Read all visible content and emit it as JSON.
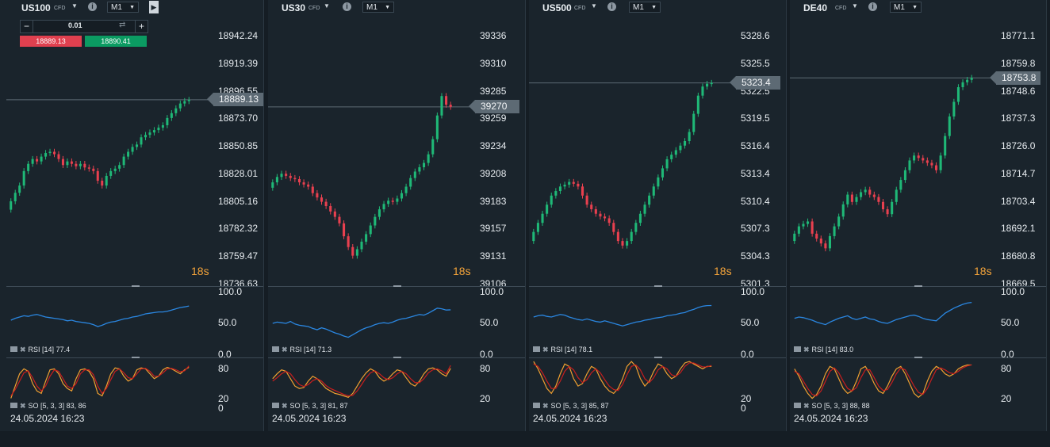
{
  "colors": {
    "up": "#1fb877",
    "down": "#e8404f",
    "rsi": "#2a86e0",
    "so_k": "#f0a030",
    "so_d": "#c81e1e",
    "price_line": "#5d6a74",
    "countdown": "#f3a33a"
  },
  "first_panel_controls": {
    "lot_value": "0.01",
    "minus": "−",
    "plus": "+",
    "swap_icon": "swap-icon",
    "sell_price": "18889.13",
    "buy_price": "18890.41",
    "play_icon": "play-icon"
  },
  "panels": [
    {
      "symbol": "US100",
      "cfd": "CFD",
      "timeframe": "M1",
      "price_ticks": [
        "18942.24",
        "18919.39",
        "18896.55",
        "18873.70",
        "18850.85",
        "18828.01",
        "18805.16",
        "18782.32",
        "18759.47",
        "18736.63"
      ],
      "price_min": 18736.63,
      "price_max": 18942.24,
      "current_price": "18889.13",
      "current_value": 18889.13,
      "countdown": "18s",
      "rsi_ticks": [
        "100.0",
        "50.0",
        "0.0"
      ],
      "rsi_label": "RSI [14] 77.4",
      "so_ticks": [
        "80",
        "20",
        "0"
      ],
      "so_label": "SO [5, 3, 3] 83, 86",
      "date": "24.05.2024 16:23"
    },
    {
      "symbol": "US30",
      "cfd": "CFD",
      "timeframe": "M1",
      "price_ticks": [
        "39336",
        "39310",
        "39285",
        "39259",
        "39234",
        "39208",
        "39183",
        "39157",
        "39131",
        "39106"
      ],
      "price_min": 39106,
      "price_max": 39336,
      "current_price": "39270",
      "current_value": 39270,
      "countdown": "18s",
      "rsi_ticks": [
        "100.0",
        "50.0",
        "0.0"
      ],
      "rsi_label": "RSI [14] 71.3",
      "so_ticks": [
        "80",
        "20"
      ],
      "so_label": "SO [5, 3, 3] 81, 87",
      "date": "24.05.2024 16:23"
    },
    {
      "symbol": "US500",
      "cfd": "CFD",
      "timeframe": "M1",
      "price_ticks": [
        "5328.6",
        "5325.5",
        "5322.5",
        "5319.5",
        "5316.4",
        "5313.4",
        "5310.4",
        "5307.3",
        "5304.3",
        "5301.3"
      ],
      "price_min": 5301.3,
      "price_max": 5328.6,
      "current_price": "5323.4",
      "current_value": 5323.4,
      "countdown": "18s",
      "rsi_ticks": [
        "100.0",
        "50.0",
        "0.0"
      ],
      "rsi_label": "RSI [14] 78.1",
      "so_ticks": [
        "20",
        "0"
      ],
      "so_label": "SO [5, 3, 3] 85, 87",
      "date": "24.05.2024 16:23"
    },
    {
      "symbol": "DE40",
      "cfd": "CFD",
      "timeframe": "M1",
      "price_ticks": [
        "18771.1",
        "18759.8",
        "18748.6",
        "18737.3",
        "18726.0",
        "18714.7",
        "18703.4",
        "18692.1",
        "18680.8",
        "18669.5"
      ],
      "price_min": 18669.5,
      "price_max": 18771.1,
      "current_price": "18753.8",
      "current_value": 18753.8,
      "countdown": "18s",
      "rsi_ticks": [
        "100.0",
        "50.0",
        "0.0"
      ],
      "rsi_label": "RSI [14] 83.0",
      "so_ticks": [
        "80",
        "20"
      ],
      "so_label": "SO [5, 3, 3] 88, 88",
      "date": "24.05.2024 16:23"
    }
  ],
  "chart_data": [
    {
      "type": "candlestick",
      "title": "US100",
      "close": [
        18805,
        18812,
        18818,
        18830,
        18836,
        18840,
        18838,
        18842,
        18845,
        18846,
        18844,
        18840,
        18835,
        18838,
        18836,
        18834,
        18836,
        18833,
        18832,
        18830,
        18822,
        18818,
        18826,
        18830,
        18832,
        18835,
        18842,
        18846,
        18850,
        18852,
        18858,
        18860,
        18862,
        18864,
        18866,
        18868,
        18874,
        18878,
        18882,
        18886,
        18888,
        18889
      ],
      "rsi": [
        55,
        58,
        60,
        62,
        61,
        63,
        64,
        62,
        60,
        59,
        58,
        57,
        56,
        54,
        55,
        53,
        52,
        51,
        50,
        48,
        45,
        47,
        50,
        52,
        53,
        55,
        57,
        58,
        60,
        61,
        63,
        65,
        66,
        67,
        68,
        68,
        69,
        71,
        73,
        75,
        76,
        77.4
      ],
      "so_k": [
        20,
        45,
        70,
        80,
        75,
        50,
        35,
        30,
        55,
        78,
        80,
        70,
        50,
        40,
        35,
        60,
        78,
        80,
        75,
        60,
        30,
        25,
        45,
        70,
        82,
        80,
        65,
        55,
        60,
        78,
        82,
        80,
        70,
        60,
        65,
        78,
        83,
        80,
        75,
        70,
        78,
        83
      ],
      "so_d": [
        25,
        38,
        55,
        72,
        76,
        62,
        45,
        35,
        45,
        65,
        78,
        75,
        60,
        45,
        40,
        50,
        70,
        78,
        78,
        68,
        45,
        30,
        40,
        58,
        75,
        80,
        72,
        62,
        60,
        70,
        80,
        81,
        75,
        65,
        65,
        72,
        80,
        81,
        78,
        74,
        76,
        86
      ]
    },
    {
      "type": "candlestick",
      "title": "US30",
      "close": [
        39200,
        39205,
        39208,
        39206,
        39204,
        39203,
        39200,
        39198,
        39196,
        39190,
        39186,
        39182,
        39178,
        39173,
        39168,
        39162,
        39150,
        39140,
        39132,
        39138,
        39145,
        39152,
        39160,
        39168,
        39175,
        39180,
        39183,
        39182,
        39185,
        39190,
        39196,
        39204,
        39210,
        39214,
        39218,
        39226,
        39240,
        39262,
        39280,
        39272,
        39270
      ],
      "rsi": [
        50,
        52,
        51,
        50,
        53,
        49,
        47,
        46,
        45,
        42,
        40,
        43,
        41,
        38,
        35,
        33,
        30,
        28,
        32,
        36,
        40,
        43,
        45,
        48,
        50,
        51,
        50,
        52,
        55,
        57,
        58,
        60,
        62,
        64,
        63,
        66,
        70,
        74,
        73,
        71,
        71.3
      ],
      "so_k": [
        60,
        70,
        78,
        75,
        60,
        45,
        40,
        42,
        55,
        65,
        60,
        50,
        40,
        35,
        30,
        28,
        25,
        22,
        30,
        45,
        60,
        72,
        80,
        75,
        62,
        55,
        60,
        70,
        78,
        75,
        62,
        50,
        45,
        55,
        70,
        80,
        82,
        78,
        70,
        65,
        81
      ],
      "so_d": [
        55,
        62,
        70,
        75,
        70,
        58,
        48,
        44,
        48,
        56,
        60,
        55,
        46,
        40,
        36,
        32,
        28,
        25,
        26,
        35,
        48,
        62,
        72,
        76,
        70,
        62,
        58,
        62,
        70,
        75,
        70,
        60,
        52,
        52,
        60,
        72,
        78,
        80,
        76,
        70,
        87
      ]
    },
    {
      "type": "candlestick",
      "title": "US500",
      "close": [
        5307,
        5308,
        5309,
        5310,
        5311,
        5311.5,
        5312,
        5312.2,
        5312.5,
        5312.3,
        5312,
        5311,
        5310,
        5309.5,
        5309,
        5308.7,
        5308.5,
        5308,
        5307,
        5306,
        5305.5,
        5306,
        5307,
        5308,
        5309,
        5310,
        5311,
        5312,
        5313,
        5314,
        5315,
        5315.5,
        5316,
        5316.5,
        5317,
        5318,
        5320,
        5322,
        5323,
        5323.3,
        5323.4
      ],
      "rsi": [
        60,
        62,
        63,
        61,
        60,
        62,
        64,
        63,
        60,
        58,
        56,
        55,
        57,
        55,
        53,
        52,
        54,
        52,
        50,
        48,
        46,
        48,
        50,
        52,
        53,
        55,
        56,
        58,
        59,
        60,
        62,
        63,
        64,
        66,
        67,
        70,
        72,
        75,
        77,
        78,
        78.1
      ],
      "so_k": [
        95,
        80,
        60,
        40,
        30,
        45,
        70,
        90,
        85,
        60,
        45,
        50,
        70,
        85,
        80,
        60,
        45,
        35,
        30,
        40,
        60,
        85,
        95,
        85,
        60,
        45,
        55,
        75,
        90,
        85,
        70,
        60,
        65,
        80,
        92,
        95,
        90,
        85,
        80,
        85,
        85
      ],
      "so_d": [
        90,
        85,
        72,
        55,
        40,
        40,
        55,
        75,
        85,
        78,
        62,
        52,
        58,
        72,
        80,
        72,
        58,
        45,
        38,
        36,
        48,
        68,
        85,
        88,
        78,
        60,
        52,
        62,
        78,
        85,
        80,
        68,
        65,
        72,
        85,
        92,
        92,
        88,
        84,
        84,
        87
      ]
    },
    {
      "type": "candlestick",
      "title": "DE40",
      "close": [
        18690,
        18693,
        18694,
        18695,
        18690,
        18688,
        18686,
        18684,
        18689,
        18693,
        18697,
        18702,
        18706,
        18703,
        18705,
        18707,
        18708,
        18706,
        18705,
        18703,
        18700,
        18698,
        18703,
        18708,
        18712,
        18716,
        18720,
        18722,
        18721,
        18720,
        18719,
        18718,
        18716,
        18722,
        18730,
        18738,
        18744,
        18750,
        18752,
        18753,
        18753.8
      ],
      "rsi": [
        58,
        60,
        59,
        57,
        55,
        52,
        50,
        48,
        52,
        55,
        58,
        60,
        62,
        58,
        56,
        58,
        60,
        57,
        56,
        53,
        51,
        50,
        53,
        56,
        58,
        60,
        62,
        63,
        61,
        58,
        56,
        55,
        54,
        60,
        66,
        70,
        74,
        77,
        80,
        82,
        83.0
      ],
      "so_k": [
        80,
        65,
        45,
        30,
        20,
        28,
        45,
        70,
        85,
        80,
        60,
        40,
        30,
        35,
        55,
        80,
        85,
        70,
        50,
        35,
        30,
        45,
        65,
        80,
        85,
        70,
        50,
        30,
        22,
        30,
        55,
        75,
        85,
        80,
        70,
        65,
        70,
        80,
        85,
        88,
        88
      ],
      "so_d": [
        75,
        70,
        55,
        40,
        28,
        25,
        35,
        55,
        75,
        82,
        72,
        55,
        40,
        35,
        42,
        62,
        78,
        78,
        62,
        45,
        36,
        38,
        52,
        70,
        82,
        78,
        62,
        45,
        32,
        28,
        40,
        60,
        78,
        82,
        78,
        72,
        70,
        75,
        82,
        86,
        88
      ]
    }
  ]
}
